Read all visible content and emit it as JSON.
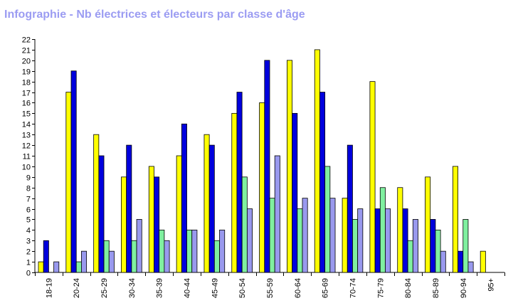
{
  "chart_data": {
    "type": "bar",
    "title": "Infographie - Nb électrices et électeurs par classe d'âge",
    "xlabel": "",
    "ylabel": "",
    "ylim": [
      0,
      22
    ],
    "yticks": [
      0,
      1,
      2,
      3,
      4,
      5,
      6,
      7,
      8,
      9,
      10,
      11,
      12,
      13,
      14,
      15,
      16,
      17,
      18,
      19,
      20,
      21,
      22
    ],
    "grid": false,
    "legend": "none",
    "categories": [
      "18-19",
      "20-24",
      "25-29",
      "30-34",
      "35-39",
      "40-44",
      "45-49",
      "50-54",
      "55-59",
      "60-64",
      "65-69",
      "70-74",
      "75-79",
      "80-84",
      "85-89",
      "90-94",
      "95+"
    ],
    "series": [
      {
        "color": "#ffff00",
        "values": [
          1,
          17,
          13,
          9,
          10,
          11,
          13,
          15,
          16,
          20,
          21,
          7,
          18,
          8,
          9,
          10,
          2
        ]
      },
      {
        "color": "#0000dd",
        "values": [
          3,
          19,
          11,
          12,
          9,
          14,
          12,
          17,
          20,
          15,
          17,
          12,
          6,
          6,
          5,
          2,
          0
        ]
      },
      {
        "color": "#80f0a0",
        "values": [
          0,
          1,
          3,
          3,
          4,
          4,
          3,
          9,
          7,
          6,
          10,
          5,
          8,
          3,
          4,
          5,
          0
        ]
      },
      {
        "color": "#9999ee",
        "values": [
          1,
          2,
          2,
          5,
          3,
          4,
          4,
          6,
          11,
          7,
          7,
          6,
          6,
          5,
          2,
          1,
          0
        ]
      }
    ]
  }
}
